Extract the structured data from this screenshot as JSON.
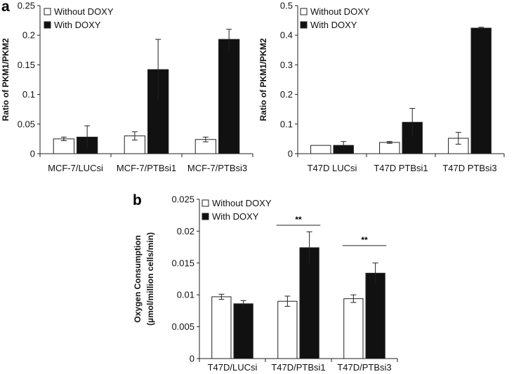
{
  "chart_data": [
    {
      "panel": "a",
      "type": "bar",
      "ylabel": "Ratio of PKM1/PKM2",
      "ylim": [
        0,
        0.25
      ],
      "yticks": [
        "0",
        "0.05",
        "0.1",
        "0.15",
        "0.2",
        "0.25"
      ],
      "categories": [
        "MCF-7/LUCsi",
        "MCF-7/PTBsi1",
        "MCF-7/PTBsi3"
      ],
      "series": [
        {
          "name": "Without DOXY",
          "color": "#ffffff",
          "values": [
            0.025,
            0.03,
            0.024
          ],
          "errors": [
            0.003,
            0.007,
            0.004
          ]
        },
        {
          "name": "With DOXY",
          "color": "#111111",
          "values": [
            0.028,
            0.142,
            0.193
          ],
          "errors": [
            0.019,
            0.051,
            0.017
          ]
        }
      ],
      "legend": "top-left"
    },
    {
      "type": "bar",
      "ylabel": "Ratio of PKM1/PKM2",
      "ylim": [
        0,
        0.5
      ],
      "yticks": [
        "0",
        "0.1",
        "0.2",
        "0.3",
        "0.4",
        "0.5"
      ],
      "categories": [
        "T47D LUCsi",
        "T47D PTBsi1",
        "T47D PTBsi3"
      ],
      "series": [
        {
          "name": "Without DOXY",
          "color": "#ffffff",
          "values": [
            0.028,
            0.038,
            0.052
          ],
          "errors": [
            0.0,
            0.003,
            0.02
          ]
        },
        {
          "name": "With DOXY",
          "color": "#111111",
          "values": [
            0.028,
            0.106,
            0.424
          ],
          "errors": [
            0.013,
            0.047,
            0.003
          ]
        }
      ],
      "legend": "top-left"
    },
    {
      "panel": "b",
      "type": "bar",
      "ylabel": "Oxygen Consumption",
      "ylabel2": "(µmol/million cells/min)",
      "ylim": [
        0,
        0.025
      ],
      "yticks": [
        "0",
        "0.005",
        "0.01",
        "0.015",
        "0.02",
        "0.025"
      ],
      "categories": [
        "T47D/LUCsi",
        "T47D/PTBsi1",
        "T47D/PTBsi3"
      ],
      "series": [
        {
          "name": "Without DOXY",
          "color": "#ffffff",
          "values": [
            0.0097,
            0.009,
            0.0094
          ],
          "errors": [
            0.0004,
            0.0008,
            0.0006
          ]
        },
        {
          "name": "With DOXY",
          "color": "#111111",
          "values": [
            0.0086,
            0.0174,
            0.0134
          ],
          "errors": [
            0.0005,
            0.0025,
            0.0016
          ]
        }
      ],
      "significance": [
        {
          "category": 1,
          "label": "**"
        },
        {
          "category": 2,
          "label": "**"
        }
      ],
      "legend": "top-left"
    }
  ]
}
